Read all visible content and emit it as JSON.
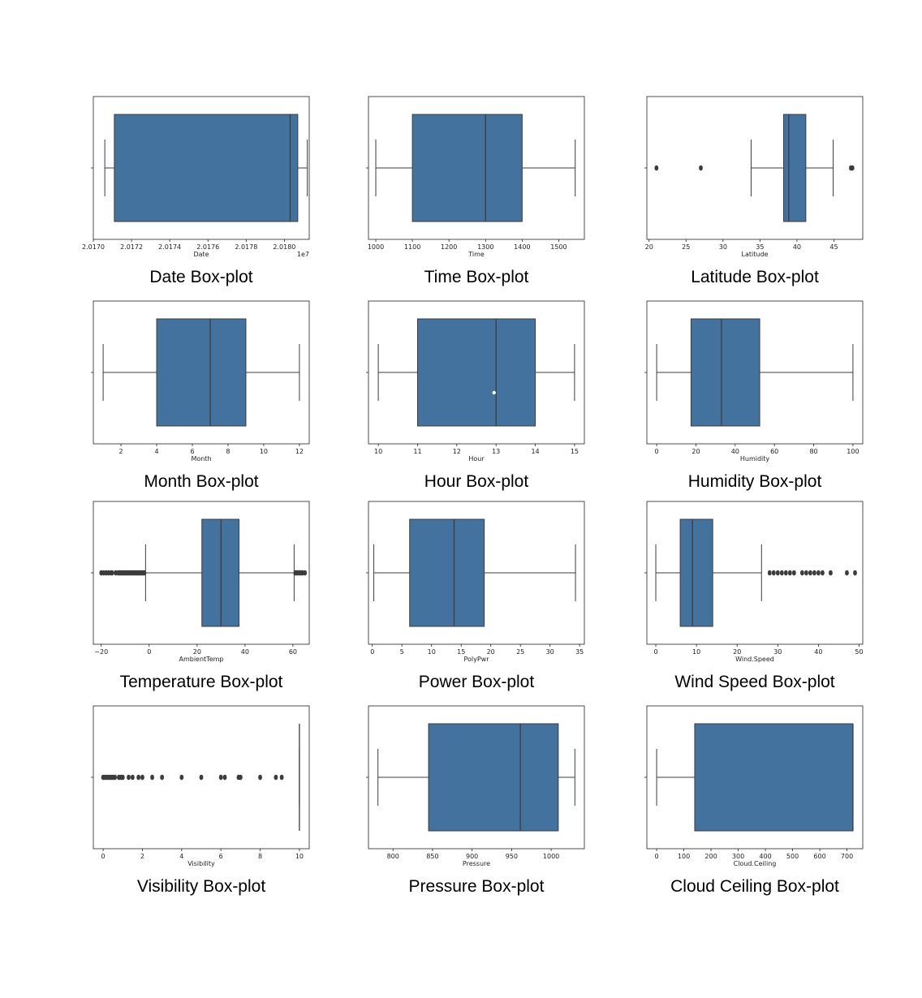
{
  "chart_data": [
    {
      "type": "box",
      "caption": "Date Box-plot",
      "xlabel": "Date",
      "offset_text": "1e7",
      "xlim": [
        20170000,
        20181300
      ],
      "xticks": [
        20170000,
        20172000,
        20174000,
        20176000,
        20178000,
        20180000
      ],
      "xtick_labels": [
        "2.0170",
        "2.0172",
        "2.0174",
        "2.0176",
        "2.0178",
        "2.0180"
      ],
      "stats": {
        "whislo": 20170600,
        "q1": 20171100,
        "median": 20180300,
        "q3": 20180700,
        "whishi": 20181200
      },
      "fliers": []
    },
    {
      "type": "box",
      "caption": "Time Box-plot",
      "xlabel": "Time",
      "xlim": [
        980,
        1570
      ],
      "xticks": [
        1000,
        1100,
        1200,
        1300,
        1400,
        1500
      ],
      "xtick_labels": [
        "1000",
        "1100",
        "1200",
        "1300",
        "1400",
        "1500"
      ],
      "stats": {
        "whislo": 1000,
        "q1": 1100,
        "median": 1300,
        "q3": 1400,
        "whishi": 1545
      },
      "fliers": []
    },
    {
      "type": "box",
      "caption": "Latitude Box-plot",
      "xlabel": "Latitude",
      "xlim": [
        19.7,
        48.9
      ],
      "xticks": [
        20,
        25,
        30,
        35,
        40,
        45
      ],
      "xtick_labels": [
        "20",
        "25",
        "30",
        "35",
        "40",
        "45"
      ],
      "stats": {
        "whislo": 33.8,
        "q1": 38.2,
        "median": 38.9,
        "q3": 41.2,
        "whishi": 44.9
      },
      "fliers": [
        21.0,
        27.0,
        47.3,
        47.5
      ]
    },
    {
      "type": "box",
      "caption": "Month Box-plot",
      "xlabel": "Month",
      "xlim": [
        0.45,
        12.55
      ],
      "xticks": [
        2,
        4,
        6,
        8,
        10,
        12
      ],
      "xtick_labels": [
        "2",
        "4",
        "6",
        "8",
        "10",
        "12"
      ],
      "stats": {
        "whislo": 1,
        "q1": 4,
        "median": 7,
        "q3": 9,
        "whishi": 12
      },
      "fliers": []
    },
    {
      "type": "box",
      "caption": "Hour Box-plot",
      "xlabel": "Hour",
      "xlim": [
        9.75,
        15.25
      ],
      "xticks": [
        10,
        11,
        12,
        13,
        14,
        15
      ],
      "xtick_labels": [
        "10",
        "11",
        "12",
        "13",
        "14",
        "15"
      ],
      "stats": {
        "whislo": 10,
        "q1": 11,
        "median": 13,
        "q3": 14,
        "whishi": 15
      },
      "fliers": [],
      "mean": 12.95
    },
    {
      "type": "box",
      "caption": "Humidity Box-plot",
      "xlabel": "Humidity",
      "xlim": [
        -5,
        105
      ],
      "xticks": [
        0,
        20,
        40,
        60,
        80,
        100
      ],
      "xtick_labels": [
        "0",
        "20",
        "40",
        "60",
        "80",
        "100"
      ],
      "stats": {
        "whislo": 0,
        "q1": 17.5,
        "median": 33,
        "q3": 52.5,
        "whishi": 100
      },
      "fliers": []
    },
    {
      "type": "box",
      "caption": "Temperature Box-plot",
      "xlabel": "AmbientTemp",
      "xlim": [
        -23.3,
        66.8
      ],
      "xticks": [
        -20,
        0,
        20,
        40,
        60
      ],
      "xtick_labels": [
        "−20",
        "0",
        "20",
        "40",
        "60"
      ],
      "stats": {
        "whislo": -1.5,
        "q1": 22,
        "median": 30,
        "q3": 37.5,
        "whishi": 60.5
      },
      "fliers": [
        -20,
        -19,
        -18,
        -17,
        -16,
        -15.5,
        -14,
        -13,
        -12.5,
        -12,
        -11.5,
        -11,
        -10.5,
        -10,
        -9.5,
        -9,
        -8.5,
        -8,
        -7.5,
        -7,
        -6.5,
        -6,
        -5.5,
        -5,
        -4.5,
        -4,
        -3.5,
        -3,
        -2.5,
        -2,
        61,
        61.5,
        62,
        62.5,
        63,
        63.5,
        64,
        65
      ]
    },
    {
      "type": "box",
      "caption": "Power Box-plot",
      "xlabel": "PolyPwr",
      "xlim": [
        -0.65,
        35.8
      ],
      "xticks": [
        0,
        5,
        10,
        15,
        20,
        25,
        30,
        35
      ],
      "xtick_labels": [
        "0",
        "5",
        "10",
        "15",
        "20",
        "25",
        "30",
        "35"
      ],
      "stats": {
        "whislo": 0.25,
        "q1": 6.3,
        "median": 13.8,
        "q3": 18.9,
        "whishi": 34.3
      },
      "fliers": []
    },
    {
      "type": "box",
      "caption": "Wind Speed Box-plot",
      "xlabel": "Wind.Speed",
      "xlim": [
        -2.2,
        50.9
      ],
      "xticks": [
        0,
        10,
        20,
        30,
        40,
        50
      ],
      "xtick_labels": [
        "0",
        "10",
        "20",
        "30",
        "40",
        "50"
      ],
      "stats": {
        "whislo": 0,
        "q1": 6,
        "median": 9,
        "q3": 14,
        "whishi": 26
      },
      "fliers": [
        28,
        29,
        30,
        31,
        32,
        33,
        34,
        36,
        37,
        38,
        39,
        40,
        41,
        43,
        47,
        49
      ]
    },
    {
      "type": "box",
      "caption": "Visibility Box-plot",
      "xlabel": "Visibility",
      "xlim": [
        -0.5,
        10.5
      ],
      "xticks": [
        0,
        2,
        4,
        6,
        8,
        10
      ],
      "xtick_labels": [
        "0",
        "2",
        "4",
        "6",
        "8",
        "10"
      ],
      "stats": {
        "whislo": 10,
        "q1": 10,
        "median": 10,
        "q3": 10,
        "whishi": 10
      },
      "fliers": [
        0,
        0.1,
        0.2,
        0.3,
        0.4,
        0.5,
        0.6,
        0.8,
        0.9,
        1,
        1.3,
        1.5,
        1.8,
        2,
        2.5,
        3,
        4,
        5,
        6,
        6.2,
        6.9,
        7,
        8,
        8.8,
        9.1
      ]
    },
    {
      "type": "box",
      "caption": "Pressure Box-plot",
      "xlabel": "Pressure",
      "xlim": [
        769,
        1042
      ],
      "xticks": [
        800,
        850,
        900,
        950,
        1000
      ],
      "xtick_labels": [
        "800",
        "850",
        "900",
        "950",
        "1000"
      ],
      "stats": {
        "whislo": 781,
        "q1": 845,
        "median": 961,
        "q3": 1009,
        "whishi": 1030
      },
      "fliers": []
    },
    {
      "type": "box",
      "caption": "Cloud Ceiling Box-plot",
      "xlabel": "Cloud.Ceiling",
      "xlim": [
        -36,
        758
      ],
      "xticks": [
        0,
        100,
        200,
        300,
        400,
        500,
        600,
        700
      ],
      "xtick_labels": [
        "0",
        "100",
        "200",
        "300",
        "400",
        "500",
        "600",
        "700"
      ],
      "stats": {
        "whislo": 0,
        "q1": 140,
        "median": 722,
        "q3": 722,
        "whishi": 722
      },
      "fliers": []
    }
  ]
}
